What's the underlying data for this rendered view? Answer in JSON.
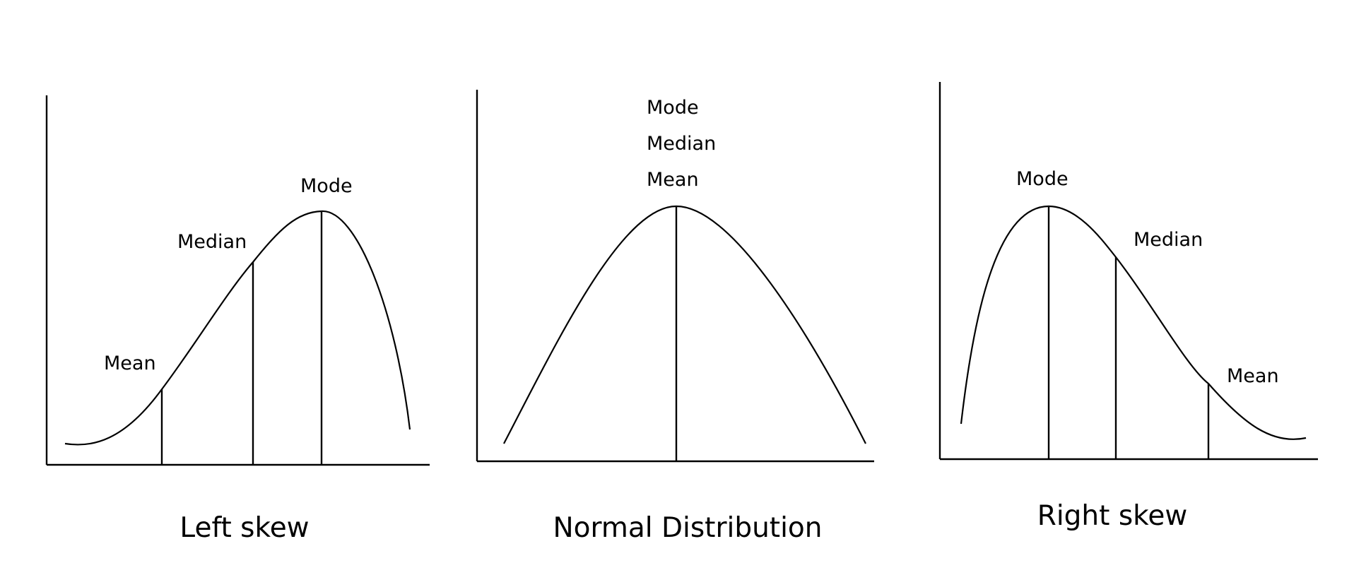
{
  "panels": {
    "left": {
      "title": "Left skew",
      "labels": {
        "mode": "Mode",
        "median": "Median",
        "mean": "Mean"
      }
    },
    "normal": {
      "title": "Normal Distribution",
      "labels": {
        "mode": "Mode",
        "median": "Median",
        "mean": "Mean"
      }
    },
    "right": {
      "title": "Right skew",
      "labels": {
        "mode": "Mode",
        "median": "Median",
        "mean": "Mean"
      }
    }
  }
}
